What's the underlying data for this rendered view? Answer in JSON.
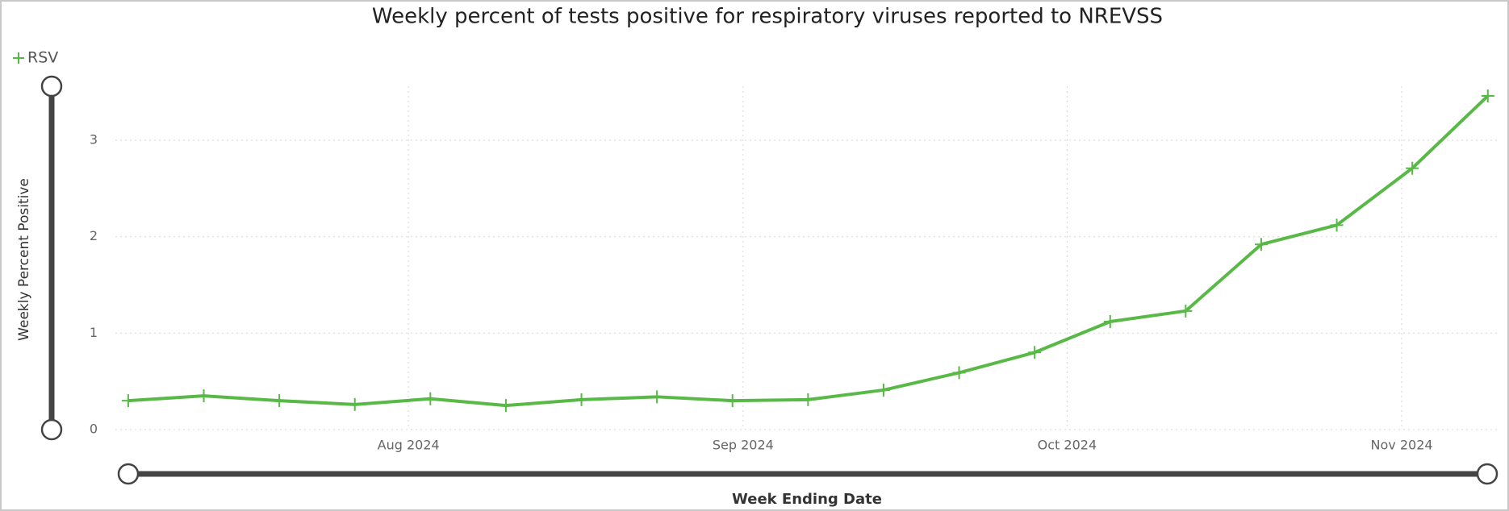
{
  "chart_data": {
    "type": "line",
    "title": "Weekly percent of tests positive for respiratory viruses reported to NREVSS",
    "x_label": "Week Ending Date",
    "y_label": "Weekly Percent Positive",
    "categories": [
      null,
      null,
      null,
      null,
      null,
      null,
      null,
      null,
      null,
      null,
      null,
      null,
      null,
      null,
      null,
      null,
      null,
      null,
      null
    ],
    "series": [
      {
        "name": "RSV",
        "color": "#58b947",
        "values": [
          0.3,
          0.35,
          0.3,
          0.26,
          0.32,
          0.25,
          0.31,
          0.34,
          0.3,
          0.31,
          0.41,
          0.59,
          0.8,
          1.12,
          1.23,
          1.92,
          2.12,
          2.71,
          3.46
        ]
      }
    ],
    "xlim": [
      -0.17,
      18.12
    ],
    "xticks": [
      {
        "value": 3.71,
        "label": "Aug 2024"
      },
      {
        "value": 8.14,
        "label": "Sep 2024"
      },
      {
        "value": 12.43,
        "label": "Oct 2024"
      },
      {
        "value": 16.86,
        "label": "Nov 2024"
      }
    ],
    "ylim": [
      0,
      3.56
    ],
    "yticks": [
      0,
      1,
      2,
      3
    ],
    "grid": true
  }
}
